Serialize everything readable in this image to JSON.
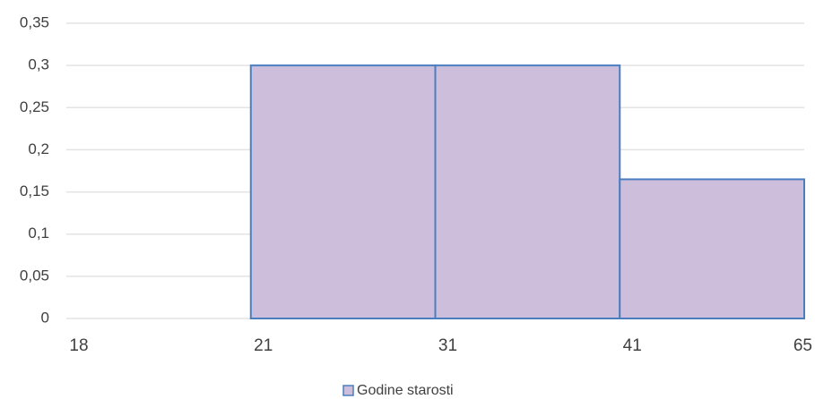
{
  "chart_data": {
    "type": "histogram",
    "bins": [
      18,
      21,
      31,
      41,
      65
    ],
    "series": [
      {
        "name": "Godine starosti",
        "color": "#cdbfdc",
        "values": [
          0,
          0.3,
          0.3,
          0.165
        ]
      }
    ],
    "ylim": [
      0,
      0.35
    ],
    "yticks": [
      0,
      {
        "value": 0.05,
        "label": "0,05"
      },
      {
        "value": 0.1,
        "label": "0,1"
      },
      {
        "value": 0.15,
        "label": "0,15"
      },
      {
        "value": 0.2,
        "label": "0,2"
      },
      {
        "value": 0.25,
        "label": "0,25"
      },
      {
        "value": 0.3,
        "label": "0,3"
      },
      {
        "value": 0.35,
        "label": "0,35"
      }
    ],
    "grid": true,
    "legend": "bottom"
  }
}
